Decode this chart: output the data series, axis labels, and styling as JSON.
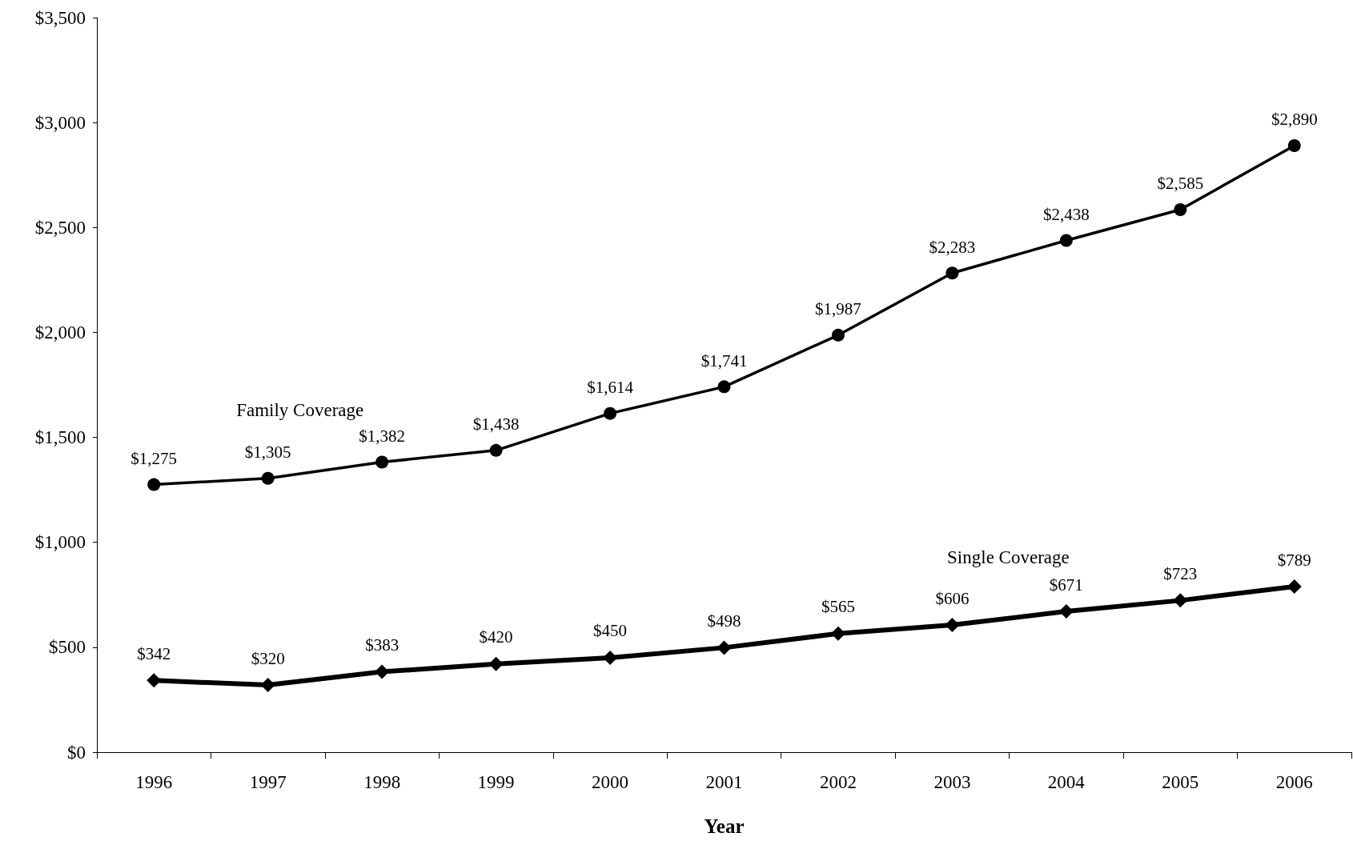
{
  "chart_data": {
    "type": "line",
    "xlabel": "Year",
    "categories": [
      "1996",
      "1997",
      "1998",
      "1999",
      "2000",
      "2001",
      "2002",
      "2003",
      "2004",
      "2005",
      "2006"
    ],
    "series": [
      {
        "name": "Family Coverage",
        "color": "#000000",
        "marker": "circle",
        "values": [
          1275,
          1305,
          1382,
          1438,
          1614,
          1741,
          1987,
          2283,
          2438,
          2585,
          2890
        ],
        "value_labels": [
          "$1,275",
          "$1,305",
          "$1,382",
          "$1,438",
          "$1,614",
          "$1,741",
          "$1,987",
          "$2,283",
          "$2,438",
          "$2,585",
          "$2,890"
        ]
      },
      {
        "name": "Single Coverage",
        "color": "#000000",
        "marker": "diamond",
        "values": [
          342,
          320,
          383,
          420,
          450,
          498,
          565,
          606,
          671,
          723,
          789
        ],
        "value_labels": [
          "$342",
          "$320",
          "$383",
          "$420",
          "$450",
          "$498",
          "$565",
          "$606",
          "$671",
          "$723",
          "$789"
        ]
      }
    ],
    "ylim": [
      0,
      3500
    ],
    "yticks": [
      {
        "value": 0,
        "label": "$0"
      },
      {
        "value": 500,
        "label": "$500"
      },
      {
        "value": 1000,
        "label": "$1,000"
      },
      {
        "value": 1500,
        "label": "$1,500"
      },
      {
        "value": 2000,
        "label": "$2,000"
      },
      {
        "value": 2500,
        "label": "$2,500"
      },
      {
        "value": 3000,
        "label": "$3,000"
      },
      {
        "value": 3500,
        "label": "$3,500"
      }
    ],
    "grid": false,
    "legend": false,
    "line_style": "solid"
  }
}
